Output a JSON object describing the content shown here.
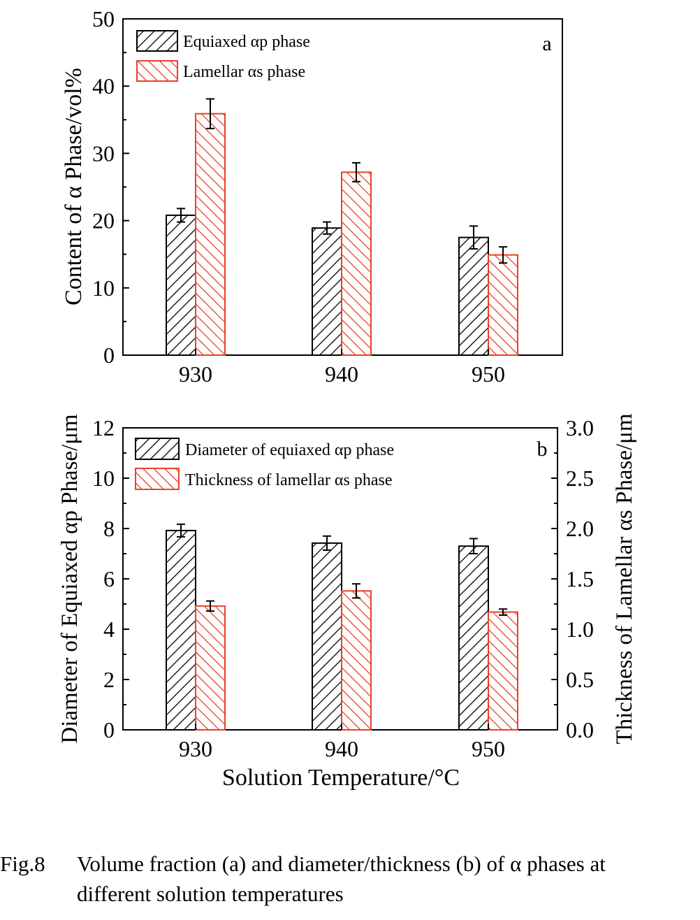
{
  "figure": {
    "caption_number": "Fig.8",
    "caption_line1": "Volume fraction (a) and diameter/thickness (b) of α phases at",
    "caption_line2": "different solution temperatures"
  },
  "colors": {
    "primary": "#000000",
    "secondary": "#e8412a"
  },
  "chart_data": [
    {
      "panel": "a",
      "type": "bar",
      "categories": [
        "930",
        "940",
        "950"
      ],
      "series": [
        {
          "name": "Equiaxed αp phase",
          "values": [
            20.8,
            18.9,
            17.5
          ],
          "errors": [
            1.0,
            0.9,
            1.7
          ],
          "color": "#000000",
          "hatch": "forward"
        },
        {
          "name": "Lamellar αs phase",
          "values": [
            35.9,
            27.2,
            14.9
          ],
          "errors": [
            2.2,
            1.4,
            1.2
          ],
          "color": "#e8412a",
          "hatch": "backward"
        }
      ],
      "ylabel": "Content of α Phase/vol%",
      "ylim": [
        0,
        50
      ],
      "yticks": [
        "0",
        "10",
        "20",
        "30",
        "40",
        "50"
      ],
      "xticks": [
        "930",
        "940",
        "950"
      ],
      "legend": "top-left",
      "grid": false
    },
    {
      "panel": "b",
      "type": "bar",
      "categories": [
        "930",
        "940",
        "950"
      ],
      "series": [
        {
          "name": "Diameter of equiaxed αp phase",
          "axis": "left",
          "values": [
            7.92,
            7.42,
            7.3
          ],
          "errors": [
            0.25,
            0.28,
            0.3
          ],
          "color": "#000000",
          "hatch": "forward"
        },
        {
          "name": "Thickness of lamellar αs phase",
          "axis": "right",
          "values": [
            1.23,
            1.38,
            1.17
          ],
          "errors": [
            0.05,
            0.07,
            0.03
          ],
          "color": "#e8412a",
          "hatch": "backward"
        }
      ],
      "xlabel": "Solution Temperature/°C",
      "ylabel": "Diameter of Equiaxed αp Phase/μm",
      "ylabel_right": "Thickness of Lamellar αs Phase/μm",
      "ylim": [
        0,
        12
      ],
      "ylim_right": [
        0,
        3.0
      ],
      "yticks": [
        "0",
        "2",
        "4",
        "6",
        "8",
        "10",
        "12"
      ],
      "yticks_right": [
        "0.0",
        "0.5",
        "1.0",
        "1.5",
        "2.0",
        "2.5",
        "3.0"
      ],
      "xticks": [
        "930",
        "940",
        "950"
      ],
      "legend": "top-left",
      "grid": false
    }
  ]
}
